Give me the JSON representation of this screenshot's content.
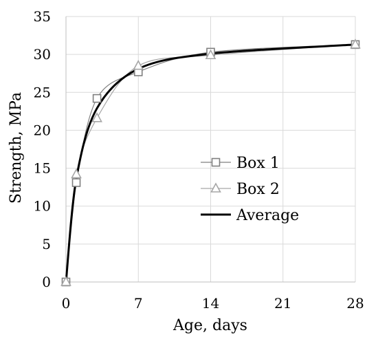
{
  "chart_data": {
    "type": "line",
    "xlabel": "Age, days",
    "ylabel": "Strength, MPa",
    "xlim": [
      0,
      28
    ],
    "ylim": [
      0,
      35
    ],
    "x_ticks": [
      0,
      7,
      14,
      21,
      28
    ],
    "y_ticks": [
      0,
      5,
      10,
      15,
      20,
      25,
      30,
      35
    ],
    "grid": true,
    "legend_position": "center-right",
    "series": [
      {
        "name": "Box 1",
        "marker": "square",
        "color": "#7f7f7f",
        "x": [
          0,
          1,
          3,
          7,
          14,
          28
        ],
        "y": [
          0,
          13.1,
          24.2,
          27.7,
          30.3,
          31.3
        ]
      },
      {
        "name": "Box 2",
        "marker": "triangle",
        "color": "#a6a6a6",
        "x": [
          0,
          1,
          3,
          7,
          14,
          28
        ],
        "y": [
          0,
          14.2,
          21.6,
          28.5,
          29.9,
          31.3
        ]
      },
      {
        "name": "Average",
        "marker": "none",
        "color": "#000000",
        "x": [
          0,
          1,
          3,
          7,
          14,
          28
        ],
        "y": [
          0,
          13.6,
          22.9,
          28.1,
          30.1,
          31.3
        ]
      }
    ]
  }
}
